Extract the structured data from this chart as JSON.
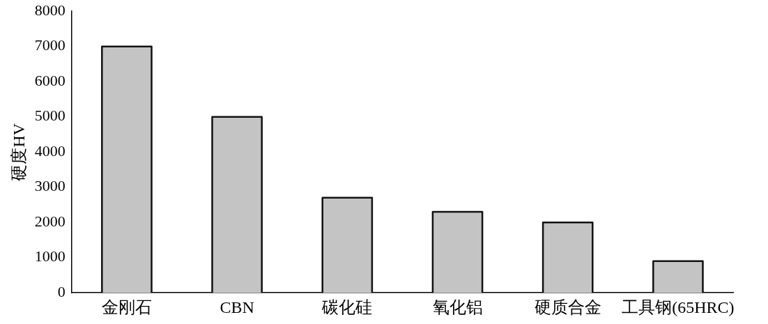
{
  "chart_data": {
    "type": "bar",
    "ylabel": "硬度HV",
    "categories": [
      "金刚石",
      "CBN",
      "碳化硅",
      "氧化铝",
      "硬质合金",
      "工具钢(65HRC)"
    ],
    "values": [
      7000,
      5000,
      2700,
      2300,
      2000,
      900
    ],
    "color": "#c4c4c4",
    "ylim": [
      0,
      8000
    ],
    "yticks": [
      0,
      1000,
      2000,
      3000,
      4000,
      5000,
      6000,
      7000,
      8000
    ],
    "grid": false,
    "legend": false
  }
}
